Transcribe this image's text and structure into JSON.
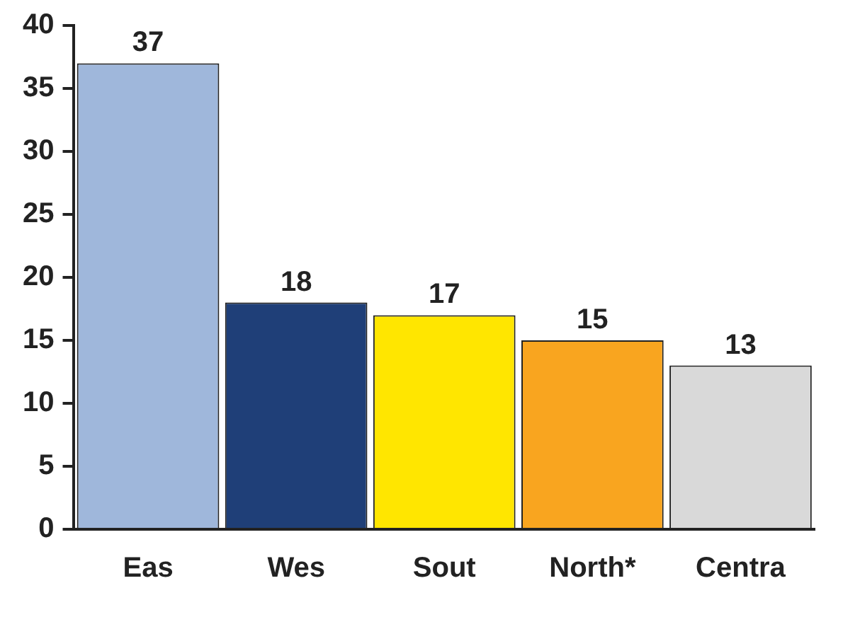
{
  "chart_data": {
    "type": "bar",
    "categories": [
      "Eas",
      "Wes",
      "Sout",
      "North*",
      "Centra"
    ],
    "values": [
      37,
      18,
      17,
      15,
      13
    ],
    "colors": [
      "#9fb7db",
      "#1f3f78",
      "#ffe600",
      "#f9a51f",
      "#d9d9d9"
    ],
    "ylim": [
      0,
      40
    ],
    "yticks": [
      0,
      5,
      10,
      15,
      20,
      25,
      30,
      35,
      40
    ],
    "grid": false,
    "legend": false,
    "data_labels": true
  }
}
